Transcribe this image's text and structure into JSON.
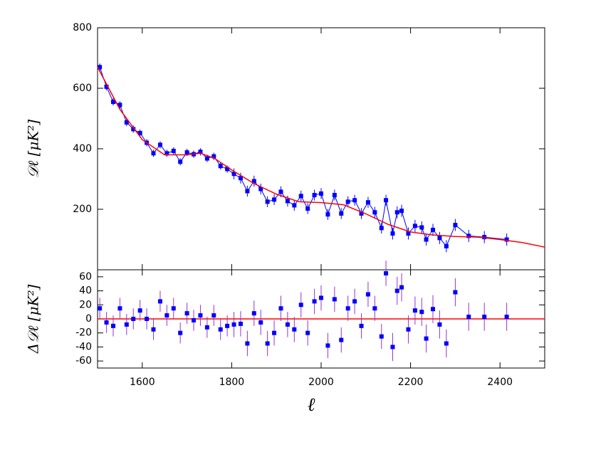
{
  "chart_data": [
    {
      "type": "line",
      "y_label": "𝒟ℓ [μK²]",
      "xlim": [
        1500,
        2500
      ],
      "ylim": [
        0,
        800
      ],
      "yticks": [
        200,
        400,
        600,
        800
      ],
      "series": [
        {
          "color": "#0000ff",
          "x": [
            1505,
            1520,
            1535,
            1550,
            1565,
            1580,
            1595,
            1610,
            1625,
            1640,
            1655,
            1670,
            1685,
            1700,
            1715,
            1730,
            1745,
            1760,
            1775,
            1790,
            1805,
            1820,
            1835,
            1850,
            1865,
            1880,
            1895,
            1910,
            1925,
            1940,
            1955,
            1970,
            1985,
            2000,
            2015,
            2030,
            2045,
            2060,
            2075,
            2090,
            2105,
            2120,
            2135,
            2145,
            2160,
            2170,
            2180,
            2195,
            2210,
            2225,
            2235,
            2250,
            2265,
            2280,
            2300,
            2330,
            2365,
            2415
          ],
          "values": [
            670,
            605,
            555,
            545,
            487,
            465,
            452,
            420,
            385,
            413,
            385,
            393,
            357,
            388,
            382,
            390,
            368,
            375,
            343,
            333,
            317,
            303,
            260,
            293,
            267,
            225,
            232,
            258,
            227,
            213,
            244,
            202,
            247,
            252,
            183,
            247,
            186,
            225,
            230,
            186,
            223,
            190,
            138,
            230,
            120,
            190,
            195,
            120,
            145,
            140,
            100,
            132,
            105,
            78,
            148,
            112,
            108,
            100
          ],
          "errors": [
            12,
            12,
            12,
            12,
            12,
            12,
            12,
            12,
            12,
            12,
            12,
            12,
            12,
            12,
            12,
            12,
            12,
            12,
            12,
            12,
            18,
            18,
            18,
            18,
            18,
            18,
            18,
            18,
            18,
            18,
            18,
            18,
            18,
            18,
            18,
            18,
            18,
            18,
            18,
            18,
            18,
            18,
            18,
            18,
            20,
            20,
            20,
            20,
            20,
            20,
            20,
            20,
            20,
            20,
            20,
            20,
            20,
            20
          ]
        },
        {
          "color": "#ff0000",
          "x": [
            1500,
            1550,
            1600,
            1650,
            1700,
            1730,
            1760,
            1800,
            1850,
            1900,
            1950,
            2000,
            2050,
            2100,
            2150,
            2200,
            2250,
            2300,
            2350,
            2400,
            2450,
            2500
          ],
          "values": [
            670,
            530,
            430,
            380,
            380,
            385,
            370,
            330,
            285,
            250,
            225,
            222,
            215,
            185,
            150,
            125,
            115,
            110,
            108,
            100,
            90,
            75
          ]
        }
      ]
    },
    {
      "type": "scatter",
      "y_label": "Δ𝒟ℓ [μK²]",
      "x_label": "ℓ",
      "xlim": [
        1500,
        2500
      ],
      "xticks": [
        1600,
        1800,
        2000,
        2200,
        2400
      ],
      "ylim": [
        -70,
        70
      ],
      "yticks": [
        -60,
        -40,
        -20,
        0,
        20,
        40,
        60
      ],
      "hline": 0,
      "hline_color": "#ff0000",
      "color": "#0000ff",
      "error_color": "#9932cc",
      "x": [
        1505,
        1520,
        1535,
        1550,
        1565,
        1580,
        1595,
        1610,
        1625,
        1640,
        1655,
        1670,
        1685,
        1700,
        1715,
        1730,
        1745,
        1760,
        1775,
        1790,
        1805,
        1820,
        1835,
        1850,
        1865,
        1880,
        1895,
        1910,
        1925,
        1940,
        1955,
        1970,
        1985,
        2000,
        2015,
        2030,
        2045,
        2060,
        2075,
        2090,
        2105,
        2120,
        2135,
        2145,
        2160,
        2170,
        2180,
        2195,
        2210,
        2225,
        2235,
        2250,
        2265,
        2280,
        2300,
        2330,
        2365,
        2415
      ],
      "values": [
        15,
        -5,
        -10,
        15,
        -8,
        0,
        12,
        0,
        -15,
        25,
        5,
        15,
        -20,
        8,
        -2,
        5,
        -12,
        5,
        -15,
        -10,
        -8,
        -7,
        -35,
        8,
        -5,
        -35,
        -20,
        15,
        -8,
        -15,
        20,
        -20,
        25,
        30,
        -38,
        28,
        -30,
        15,
        25,
        -10,
        35,
        15,
        -25,
        65,
        -40,
        40,
        45,
        -15,
        12,
        10,
        -28,
        14,
        -8,
        -35,
        38,
        3,
        3,
        3
      ],
      "errors": [
        15,
        15,
        15,
        15,
        15,
        15,
        15,
        15,
        15,
        15,
        15,
        15,
        15,
        15,
        15,
        15,
        15,
        15,
        15,
        15,
        18,
        18,
        18,
        18,
        18,
        18,
        18,
        18,
        18,
        18,
        18,
        18,
        18,
        18,
        18,
        18,
        18,
        18,
        18,
        18,
        18,
        18,
        18,
        18,
        20,
        20,
        20,
        20,
        20,
        20,
        20,
        20,
        20,
        20,
        20,
        20,
        20,
        20
      ]
    }
  ]
}
